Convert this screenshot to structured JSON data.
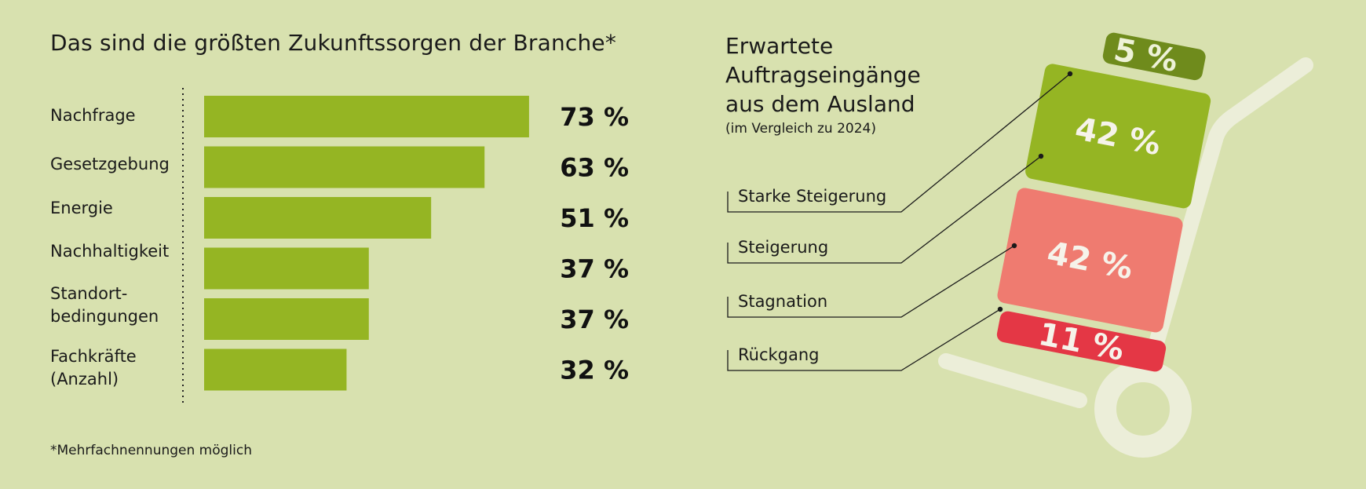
{
  "chart_data": [
    {
      "type": "bar",
      "orientation": "horizontal",
      "title": "Das sind die größten Zukunftssorgen der Branche*",
      "categories": [
        "Nachfrage",
        "Gesetzgebung",
        "Energie",
        "Nachhaltigkeit",
        "Standort-\nbedingungen",
        "Fachkräfte\n(Anzahl)"
      ],
      "values": [
        73,
        63,
        51,
        37,
        37,
        32
      ],
      "value_labels": [
        "73 %",
        "63 %",
        "51 %",
        "37 %",
        "37 %",
        "32 %"
      ],
      "unit": "%",
      "xlim": [
        0,
        100
      ],
      "bar_color": "#95b523",
      "footnote": "*Mehrfachnennungen möglich"
    },
    {
      "type": "stacked",
      "title": "Erwartete Auftragseingänge aus dem Ausland",
      "subtitle": "(im Vergleich zu 2024)",
      "categories": [
        "Starke Steigerung",
        "Steigerung",
        "Stagnation",
        "Rückgang"
      ],
      "values": [
        5,
        42,
        42,
        11
      ],
      "value_labels": [
        "5 %",
        "42 %",
        "42 %",
        "11 %"
      ],
      "colors": [
        "#6f8b1c",
        "#95b523",
        "#ef7b70",
        "#e43745"
      ]
    }
  ]
}
